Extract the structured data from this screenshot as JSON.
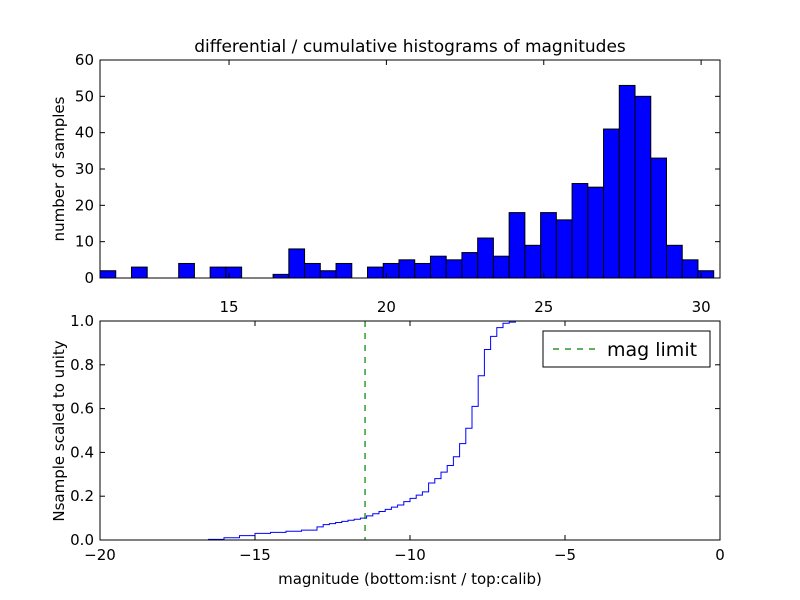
{
  "chart_data": [
    {
      "type": "bar",
      "title": "differential / cumulative histograms of magnitudes",
      "xlabel": "",
      "ylabel": "number of samples",
      "xlim": [
        10.9,
        30.6
      ],
      "ylim": [
        0,
        60
      ],
      "xticks": [
        15,
        20,
        25,
        30
      ],
      "yticks": [
        0,
        10,
        20,
        30,
        40,
        50,
        60
      ],
      "bar_color": "#0000ff",
      "bin_width": 0.5,
      "bins": [
        {
          "left": 10.9,
          "value": 2
        },
        {
          "left": 11.9,
          "value": 3
        },
        {
          "left": 13.4,
          "value": 4
        },
        {
          "left": 14.4,
          "value": 3
        },
        {
          "left": 14.9,
          "value": 3
        },
        {
          "left": 16.4,
          "value": 1
        },
        {
          "left": 16.9,
          "value": 8
        },
        {
          "left": 17.4,
          "value": 4
        },
        {
          "left": 17.9,
          "value": 2
        },
        {
          "left": 18.4,
          "value": 4
        },
        {
          "left": 19.4,
          "value": 3
        },
        {
          "left": 19.9,
          "value": 4
        },
        {
          "left": 20.4,
          "value": 5
        },
        {
          "left": 20.9,
          "value": 4
        },
        {
          "left": 21.4,
          "value": 6
        },
        {
          "left": 21.9,
          "value": 5
        },
        {
          "left": 22.4,
          "value": 7
        },
        {
          "left": 22.9,
          "value": 11
        },
        {
          "left": 23.4,
          "value": 6
        },
        {
          "left": 23.9,
          "value": 18
        },
        {
          "left": 24.4,
          "value": 9
        },
        {
          "left": 24.9,
          "value": 18
        },
        {
          "left": 25.4,
          "value": 16
        },
        {
          "left": 25.9,
          "value": 26
        },
        {
          "left": 26.4,
          "value": 25
        },
        {
          "left": 26.9,
          "value": 41
        },
        {
          "left": 27.4,
          "value": 53
        },
        {
          "left": 27.9,
          "value": 50
        },
        {
          "left": 28.4,
          "value": 33
        },
        {
          "left": 28.9,
          "value": 9
        },
        {
          "left": 29.4,
          "value": 5
        },
        {
          "left": 29.9,
          "value": 2
        }
      ]
    },
    {
      "type": "line",
      "xlabel": "magnitude (bottom:isnt / top:calib)",
      "ylabel": "Nsample scaled to unity",
      "xlim": [
        -20,
        0
      ],
      "ylim": [
        0,
        1
      ],
      "xticks": [
        -20,
        -15,
        -10,
        -5,
        0
      ],
      "xtick_labels": [
        "−20",
        "−15",
        "−10",
        "−5",
        "0"
      ],
      "yticks": [
        0.0,
        0.2,
        0.4,
        0.6,
        0.8,
        1.0
      ],
      "ytick_labels": [
        "0.0",
        "0.2",
        "0.4",
        "0.6",
        "0.8",
        "1.0"
      ],
      "legend_position": "top-right",
      "series": [
        {
          "name": "",
          "style": "steps",
          "color": "#0000ff",
          "x": [
            -20,
            -16.5,
            -16.0,
            -15.5,
            -15.0,
            -14.5,
            -14.0,
            -13.5,
            -13.0,
            -12.8,
            -12.6,
            -12.4,
            -12.2,
            -12.0,
            -11.8,
            -11.6,
            -11.4,
            -11.2,
            -11.0,
            -10.8,
            -10.6,
            -10.4,
            -10.2,
            -10.0,
            -9.8,
            -9.6,
            -9.4,
            -9.2,
            -9.0,
            -8.8,
            -8.6,
            -8.4,
            -8.2,
            -8.0,
            -7.8,
            -7.6,
            -7.4,
            -7.2,
            -7.0,
            -6.8,
            -6.6,
            -6.4,
            0
          ],
          "y": [
            0.0,
            0.003,
            0.01,
            0.02,
            0.03,
            0.035,
            0.04,
            0.045,
            0.06,
            0.07,
            0.075,
            0.08,
            0.085,
            0.09,
            0.095,
            0.1,
            0.11,
            0.12,
            0.13,
            0.14,
            0.15,
            0.16,
            0.175,
            0.19,
            0.205,
            0.22,
            0.26,
            0.28,
            0.31,
            0.34,
            0.38,
            0.44,
            0.51,
            0.61,
            0.75,
            0.87,
            0.93,
            0.97,
            0.99,
            0.995,
            1.0,
            1.0,
            1.0
          ]
        },
        {
          "name": "mag limit",
          "style": "dashed-vertical",
          "color": "#008000",
          "x": -11.45
        }
      ]
    }
  ]
}
